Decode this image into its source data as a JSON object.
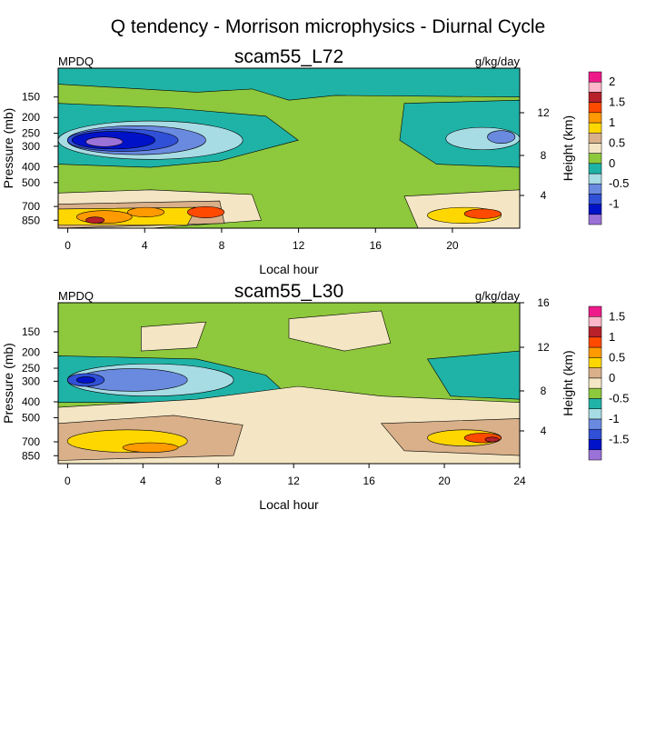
{
  "page_title": "Q tendency - Morrison microphysics - Diurnal Cycle",
  "chart_data": [
    {
      "type": "heatmap",
      "title": "scam55_L72",
      "left_label": "MPDQ",
      "units": "g/kg/day",
      "xlabel": "Local hour",
      "ylabel": "Pressure (mb)",
      "ylabel_right": "Height (km)",
      "x_ticks": [
        0,
        4,
        8,
        12,
        16,
        20
      ],
      "xlim": [
        -0.5,
        23.5
      ],
      "y_ticks": [
        150,
        200,
        250,
        300,
        400,
        500,
        700,
        850
      ],
      "ylim": [
        100,
        950
      ],
      "y_scale": "log",
      "height_ticks": [
        4,
        8,
        12
      ],
      "levels": [
        -1.25,
        -1,
        -0.75,
        -0.5,
        -0.25,
        0,
        0.25,
        0.5,
        0.75,
        1,
        1.25,
        1.5,
        1.75,
        2
      ],
      "colorbar_labels": [
        "-1",
        "-0.5",
        "0",
        "0.5",
        "1",
        "1.5",
        "2"
      ],
      "colors": [
        "#9b72d8",
        "#0012c8",
        "#3050d8",
        "#6a8ae0",
        "#a8dce4",
        "#1fb3a8",
        "#8ec83c",
        "#f4e6c4",
        "#d9b08a",
        "#ffd700",
        "#ff9a00",
        "#ff4a00",
        "#b8202a",
        "#ffb6c8",
        "#ee1a8a"
      ]
    },
    {
      "type": "heatmap",
      "title": "scam55_L30",
      "left_label": "MPDQ",
      "units": "g/kg/day",
      "xlabel": "Local hour",
      "ylabel": "Pressure (mb)",
      "ylabel_right": "Height (km)",
      "x_ticks": [
        0,
        4,
        8,
        12,
        16,
        20,
        24
      ],
      "xlim": [
        -0.5,
        24
      ],
      "y_ticks": [
        150,
        200,
        250,
        300,
        400,
        500,
        700,
        850
      ],
      "ylim": [
        100,
        950
      ],
      "y_scale": "log",
      "height_ticks": [
        4,
        8,
        12,
        16
      ],
      "levels": [
        -1.5,
        -1.25,
        -1,
        -0.75,
        -0.5,
        -0.25,
        0,
        0.25,
        0.5,
        0.75,
        1,
        1.25,
        1.5,
        1.75
      ],
      "colorbar_labels": [
        "-1.5",
        "-1",
        "-0.5",
        "0",
        "0.5",
        "1",
        "1.5"
      ],
      "colors": [
        "#9b72d8",
        "#0012c8",
        "#3050d8",
        "#6a8ae0",
        "#a8dce4",
        "#1fb3a8",
        "#8ec83c",
        "#f4e6c4",
        "#d9b08a",
        "#ffd700",
        "#ff9a00",
        "#ff4a00",
        "#b8202a",
        "#ffb6c8",
        "#ee1a8a"
      ]
    }
  ]
}
